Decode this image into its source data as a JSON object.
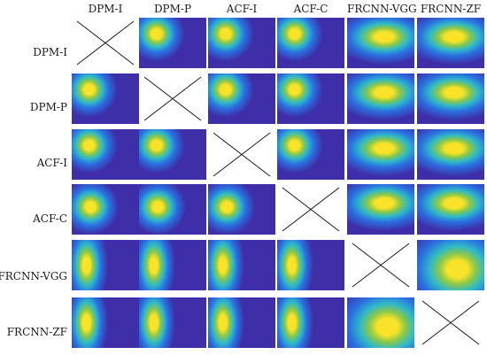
{
  "columns": [
    "DPM-I",
    "DPM-P",
    "ACF-I",
    "ACF-C",
    "FRCNN-VGG",
    "FRCNN-ZF"
  ],
  "rows": [
    "DPM-I",
    "DPM-P",
    "ACF-I",
    "ACF-C",
    "FRCNN-VGG",
    "FRCNN-ZF"
  ],
  "colormap": {
    "background": "#3e2fa8",
    "mid_blue": "#2a6fe0",
    "cyan": "#2fb9c8",
    "green": "#8ac84a",
    "yellow": "#f8e328"
  },
  "blobs": [
    [
      null,
      "small-top-left",
      "small-top-left",
      "small-top-left",
      "wide-horizontal",
      "wide-horizontal"
    ],
    [
      "small-top-left",
      null,
      "small-top-left",
      "small-top-left",
      "wide-horizontal",
      "wide-horizontal"
    ],
    [
      "small-top-left",
      "small-top-left",
      null,
      "small-top-left",
      "wide-horizontal",
      "wide-horizontal"
    ],
    [
      "small-left",
      "small-left",
      "small-left",
      null,
      "wide-horizontal",
      "wide-horizontal"
    ],
    [
      "tall-vertical",
      "tall-vertical",
      "tall-vertical",
      "tall-vertical",
      null,
      "large-diffuse"
    ],
    [
      "tall-vertical",
      "tall-vertical",
      "tall-vertical",
      "tall-vertical",
      "large-diffuse",
      null
    ]
  ]
}
